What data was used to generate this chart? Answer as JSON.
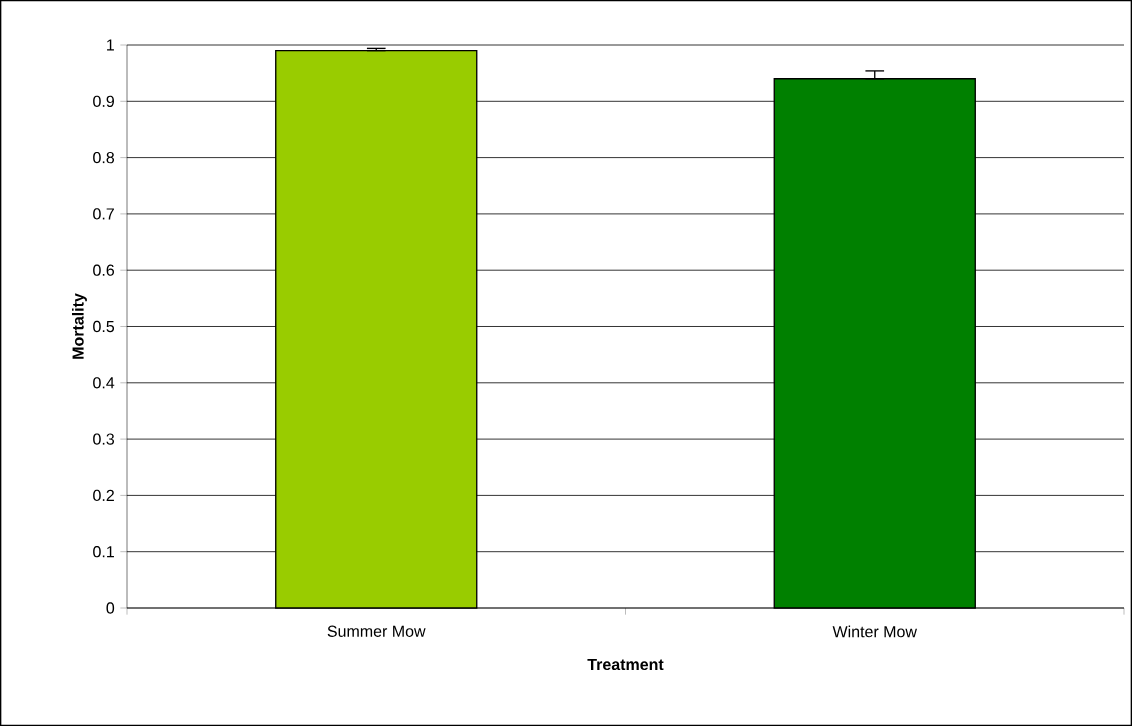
{
  "chart_data": {
    "type": "bar",
    "xlabel": "Treatment",
    "ylabel": "Mortality",
    "categories": [
      "Summer Mow",
      "Winter Mow"
    ],
    "values": [
      0.99,
      0.94
    ],
    "colors": [
      "#99cc00",
      "#008000"
    ],
    "errors": [
      [
        0.99,
        0.994
      ],
      [
        0.94,
        0.954
      ]
    ],
    "ylim": [
      0,
      1
    ],
    "yticks": [
      0,
      0.1,
      0.2,
      0.3,
      0.4,
      0.5,
      0.6,
      0.7,
      0.8,
      0.9,
      1
    ],
    "grid": "y"
  }
}
